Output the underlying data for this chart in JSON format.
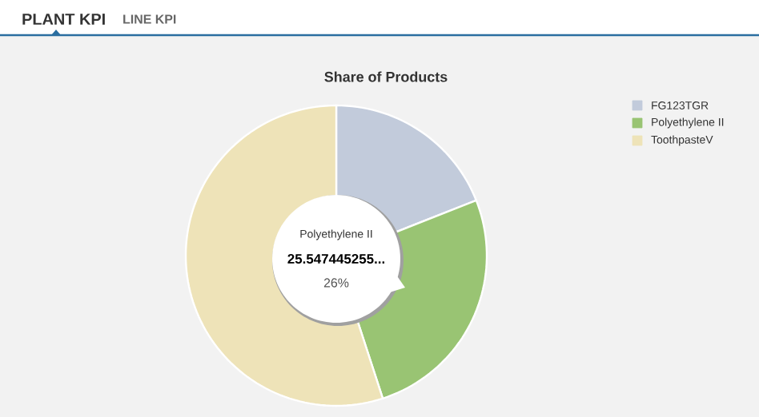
{
  "chart_data": {
    "type": "pie",
    "title": "Share of Products",
    "categories": [
      "FG123TGR",
      "Polyethylene II",
      "ToothpasteV"
    ],
    "values": [
      19,
      26,
      55
    ],
    "colors": [
      "#c2cbdb",
      "#99c473",
      "#eee3b8"
    ],
    "legend": "top right",
    "annotations": [
      "PLANT KPI",
      "LINE KPI",
      "Polyethylene II",
      "25.547445255...",
      "26%"
    ]
  }
}
